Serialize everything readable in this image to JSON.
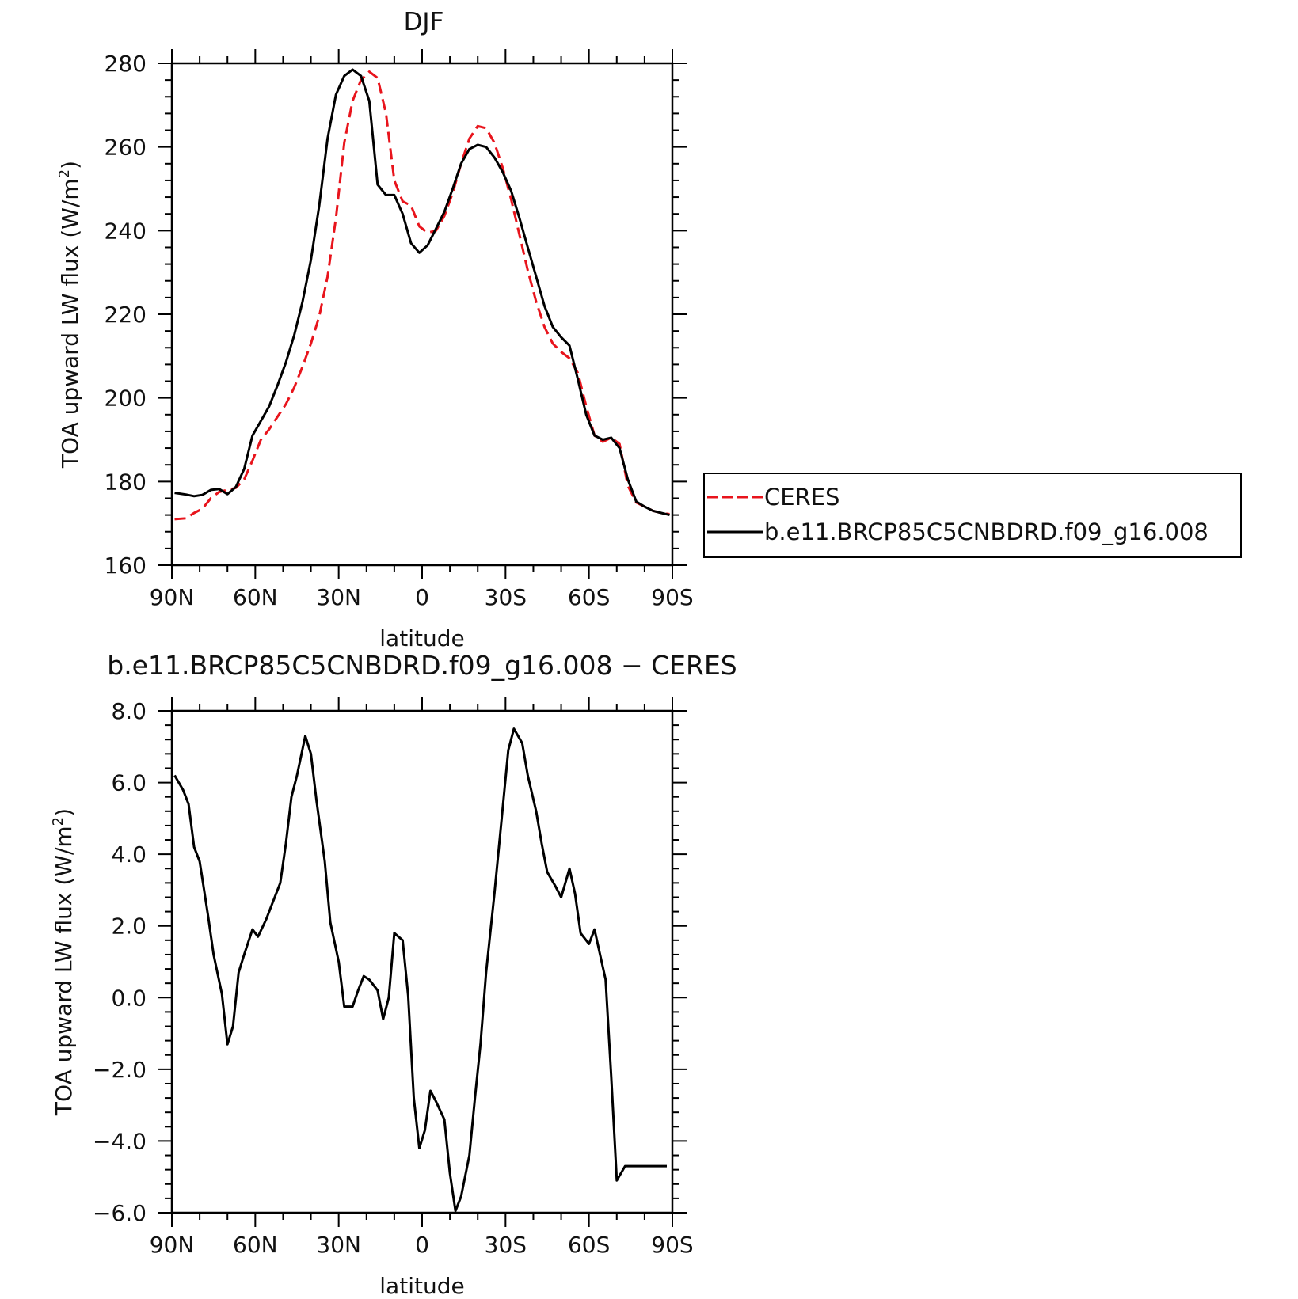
{
  "chart_data": [
    {
      "type": "line",
      "title": "DJF",
      "xlabel": "latitude",
      "ylabel_main": "TOA upward LW flux (W/m",
      "ylabel_sup": "2",
      "ylabel_close": ")",
      "xlim": [
        -90,
        90
      ],
      "xticks": [
        {
          "value": -90,
          "label": "90N"
        },
        {
          "value": -60,
          "label": "60N"
        },
        {
          "value": -30,
          "label": "30N"
        },
        {
          "value": 0,
          "label": "0"
        },
        {
          "value": 30,
          "label": "30S"
        },
        {
          "value": 60,
          "label": "60S"
        },
        {
          "value": 90,
          "label": "90S"
        }
      ],
      "ylim": [
        160,
        280
      ],
      "yticks": [
        {
          "value": 160,
          "label": "160"
        },
        {
          "value": 180,
          "label": "180"
        },
        {
          "value": 200,
          "label": "200"
        },
        {
          "value": 220,
          "label": "220"
        },
        {
          "value": 240,
          "label": "240"
        },
        {
          "value": 260,
          "label": "260"
        },
        {
          "value": 280,
          "label": "280"
        }
      ],
      "legend_position": "right",
      "series": [
        {
          "name": "CERES",
          "color": "#e8141c",
          "dash": true,
          "x": [
            -89,
            -85,
            -82,
            -79,
            -76,
            -73,
            -70,
            -67,
            -64,
            -61,
            -58,
            -55,
            -52,
            -49,
            -46,
            -43,
            -40,
            -37,
            -34,
            -31,
            -28,
            -25,
            -22,
            -19,
            -16,
            -13,
            -10,
            -7,
            -4,
            -1,
            2,
            5,
            8,
            11,
            14,
            17,
            20,
            23,
            26,
            29,
            32,
            35,
            38,
            41,
            44,
            47,
            50,
            53,
            56,
            59,
            62,
            65,
            68,
            71,
            74,
            77,
            80,
            83,
            86,
            89
          ],
          "y": [
            171,
            171.2,
            172.5,
            173.5,
            176,
            177.5,
            178,
            178.5,
            180.5,
            185,
            190,
            192.5,
            195.5,
            198.5,
            202.5,
            207.5,
            213,
            219.5,
            229,
            243,
            261,
            271,
            276,
            278,
            276.5,
            268,
            252,
            247,
            246,
            241,
            239.5,
            240,
            243.5,
            249,
            256,
            262,
            265,
            264.5,
            261,
            255,
            247.5,
            239,
            230.5,
            223,
            217,
            213,
            211,
            209.5,
            206,
            198,
            191,
            189.5,
            190.5,
            189,
            179,
            175,
            174,
            173,
            172.5,
            172.2
          ]
        },
        {
          "name": "b.e11.BRCP85C5CNBDRD.f09_g16.008",
          "color": "#000000",
          "dash": false,
          "x": [
            -89,
            -85,
            -82,
            -79,
            -76,
            -73,
            -70,
            -67,
            -64,
            -61,
            -58,
            -55,
            -52,
            -49,
            -46,
            -43,
            -40,
            -37,
            -34,
            -31,
            -28,
            -25,
            -22,
            -19,
            -16,
            -13,
            -10,
            -7,
            -4,
            -1,
            2,
            5,
            8,
            11,
            14,
            17,
            20,
            23,
            26,
            29,
            32,
            35,
            38,
            41,
            44,
            47,
            50,
            53,
            56,
            59,
            62,
            65,
            68,
            71,
            74,
            77,
            80,
            83,
            86,
            89
          ],
          "y": [
            177.3,
            176.9,
            176.5,
            176.8,
            178,
            178.2,
            177,
            178.7,
            183,
            191,
            194.5,
            198,
            203,
            208.5,
            215,
            223,
            233,
            246,
            262,
            272.5,
            277,
            278.5,
            277,
            271,
            251,
            248.5,
            248.5,
            244,
            237,
            234.7,
            236.5,
            240.5,
            244.5,
            250,
            256,
            259.5,
            260.5,
            260,
            257.5,
            254,
            249.5,
            243,
            236,
            229,
            222,
            217,
            214.5,
            212.5,
            204.5,
            196,
            191,
            190,
            190.5,
            188,
            180.5,
            175.2,
            174,
            173,
            172.5,
            172
          ]
        }
      ]
    },
    {
      "type": "line",
      "title": "b.e11.BRCP85C5CNBDRD.f09_g16.008 − CERES",
      "xlabel": "latitude",
      "ylabel_main": "TOA upward LW flux (W/m",
      "ylabel_sup": "2",
      "ylabel_close": ")",
      "xlim": [
        -90,
        90
      ],
      "xticks": [
        {
          "value": -90,
          "label": "90N"
        },
        {
          "value": -60,
          "label": "60N"
        },
        {
          "value": -30,
          "label": "30N"
        },
        {
          "value": 0,
          "label": "0"
        },
        {
          "value": 30,
          "label": "30S"
        },
        {
          "value": 60,
          "label": "60S"
        },
        {
          "value": 90,
          "label": "90S"
        }
      ],
      "ylim": [
        -6,
        8
      ],
      "yticks": [
        {
          "value": -6,
          "label": "−6.0"
        },
        {
          "value": -4,
          "label": "−4.0"
        },
        {
          "value": -2,
          "label": "−2.0"
        },
        {
          "value": 0,
          "label": "0.0"
        },
        {
          "value": 2,
          "label": "2.0"
        },
        {
          "value": 4,
          "label": "4.0"
        },
        {
          "value": 6,
          "label": "6.0"
        },
        {
          "value": 8,
          "label": "8.0"
        }
      ],
      "series": [
        {
          "color": "#000000",
          "dash": false,
          "x": [
            -89,
            -86,
            -84,
            -82,
            -80,
            -77,
            -75,
            -72,
            -70,
            -68,
            -66,
            -64,
            -61,
            -59,
            -56,
            -54,
            -51,
            -49,
            -47,
            -45,
            -42,
            -40,
            -38,
            -35,
            -33,
            -30,
            -28,
            -25,
            -23,
            -21,
            -19,
            -16,
            -14,
            -12,
            -10,
            -7,
            -5,
            -3,
            -1,
            1,
            3,
            5,
            8,
            10,
            12,
            14,
            17,
            19,
            21,
            23,
            26,
            28,
            31,
            33,
            36,
            38,
            41,
            43,
            45,
            48,
            50,
            53,
            55,
            57,
            60,
            62,
            64,
            66,
            68,
            70,
            73,
            75,
            77,
            80,
            82,
            84,
            86,
            88
          ],
          "y": [
            6.2,
            5.8,
            5.4,
            4.2,
            3.8,
            2.3,
            1.2,
            0.1,
            -1.3,
            -0.8,
            0.7,
            1.2,
            1.9,
            1.7,
            2.2,
            2.6,
            3.2,
            4.3,
            5.6,
            6.2,
            7.3,
            6.8,
            5.5,
            3.8,
            2.1,
            1.0,
            -0.25,
            -0.25,
            0.2,
            0.6,
            0.5,
            0.2,
            -0.6,
            0.0,
            1.8,
            1.6,
            0.05,
            -2.8,
            -4.2,
            -3.7,
            -2.6,
            -2.9,
            -3.4,
            -4.9,
            -5.95,
            -5.55,
            -4.4,
            -2.8,
            -1.3,
            0.7,
            2.9,
            4.5,
            6.9,
            7.5,
            7.1,
            6.2,
            5.2,
            4.3,
            3.5,
            3.1,
            2.8,
            3.6,
            2.9,
            1.8,
            1.5,
            1.9,
            1.2,
            0.5,
            -2.2,
            -5.1,
            -4.7,
            -4.7,
            -4.7,
            -4.7,
            -4.7,
            -4.7,
            -4.7,
            -4.7
          ]
        }
      ]
    }
  ]
}
